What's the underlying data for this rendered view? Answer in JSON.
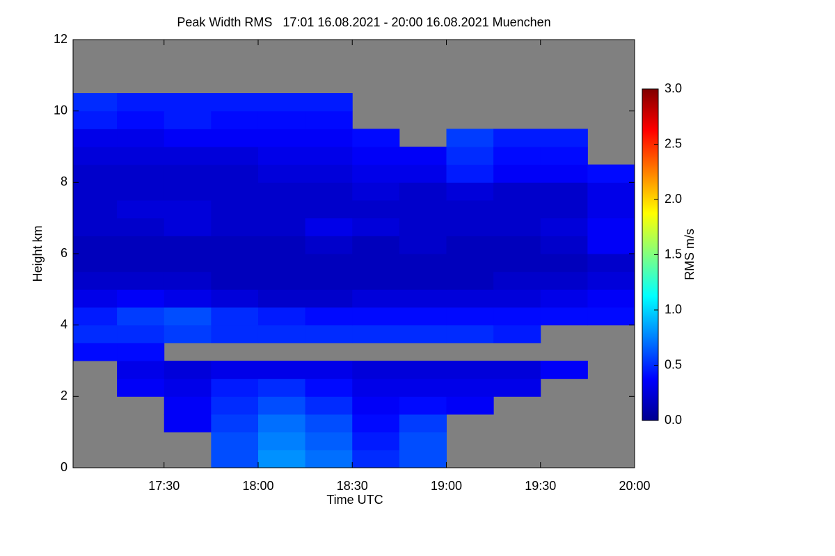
{
  "chart_data": {
    "type": "heatmap",
    "title": "Peak Width RMS   17:01 16.08.2021 - 20:00 16.08.2021 Muenchen",
    "xlabel": "Time UTC",
    "ylabel": "Height km",
    "colorbar_label": "RMS m/s",
    "xlim": [
      17.0167,
      20.0
    ],
    "xticks": [
      {
        "value": 17.5,
        "label": "17:30"
      },
      {
        "value": 18,
        "label": "18:00"
      },
      {
        "value": 18.5,
        "label": "18:30"
      },
      {
        "value": 19,
        "label": "19:00"
      },
      {
        "value": 19.5,
        "label": "19:30"
      },
      {
        "value": 20,
        "label": "20:00"
      }
    ],
    "ylim": [
      0,
      12
    ],
    "yticks": [
      0,
      2,
      4,
      6,
      8,
      10,
      12
    ],
    "zlim": [
      0,
      3
    ],
    "zticks": [
      {
        "value": 0,
        "label": "0.0"
      },
      {
        "value": 0.5,
        "label": "0.5"
      },
      {
        "value": 1,
        "label": "1.0"
      },
      {
        "value": 1.5,
        "label": "1.5"
      },
      {
        "value": 2,
        "label": "2.0"
      },
      {
        "value": 2.5,
        "label": "2.5"
      },
      {
        "value": 3,
        "label": "3.0"
      }
    ],
    "colorscale": [
      "#00008f",
      "#0000ff",
      "#0080ff",
      "#00ffff",
      "#80ff80",
      "#ffff00",
      "#ff8000",
      "#ff0000",
      "#800000"
    ],
    "missing_color": "#808080",
    "x": [
      17.125,
      17.375,
      17.625,
      17.875,
      18.125,
      18.375,
      18.625,
      18.875,
      19.125,
      19.375,
      19.625,
      19.875
    ],
    "y": [
      0.25,
      0.75,
      1.25,
      1.75,
      2.25,
      2.75,
      3.25,
      3.75,
      4.25,
      4.75,
      5.25,
      5.75,
      6.25,
      6.75,
      7.25,
      7.75,
      8.25,
      8.75,
      9.25,
      9.75,
      10.25,
      10.75
    ],
    "z": [
      [
        null,
        null,
        null,
        0.6,
        0.8,
        0.7,
        0.5,
        0.6,
        null,
        null,
        null,
        null
      ],
      [
        null,
        null,
        null,
        0.6,
        0.75,
        0.65,
        0.45,
        0.6,
        null,
        null,
        null,
        null
      ],
      [
        null,
        null,
        0.35,
        0.55,
        0.7,
        0.6,
        0.4,
        0.55,
        null,
        null,
        null,
        null
      ],
      [
        null,
        null,
        0.35,
        0.5,
        0.6,
        0.5,
        0.35,
        0.4,
        0.35,
        null,
        null,
        null
      ],
      [
        null,
        0.35,
        0.3,
        0.45,
        0.5,
        0.4,
        0.3,
        0.3,
        0.3,
        0.3,
        null,
        null
      ],
      [
        null,
        0.3,
        0.25,
        0.3,
        0.3,
        0.3,
        0.25,
        0.25,
        0.25,
        0.25,
        0.35,
        null
      ],
      [
        0.4,
        0.4,
        null,
        null,
        null,
        null,
        null,
        null,
        null,
        null,
        null,
        null
      ],
      [
        0.5,
        0.5,
        0.55,
        0.5,
        0.5,
        0.5,
        0.5,
        0.5,
        0.5,
        0.45,
        null,
        null
      ],
      [
        0.45,
        0.55,
        0.6,
        0.5,
        0.45,
        0.4,
        0.4,
        0.4,
        0.4,
        0.4,
        0.4,
        0.4
      ],
      [
        0.3,
        0.35,
        0.3,
        0.25,
        0.2,
        0.2,
        0.25,
        0.25,
        0.25,
        0.25,
        0.3,
        0.35
      ],
      [
        0.2,
        0.2,
        0.2,
        0.15,
        0.15,
        0.15,
        0.15,
        0.15,
        0.15,
        0.2,
        0.2,
        0.25
      ],
      [
        0.15,
        0.15,
        0.15,
        0.15,
        0.15,
        0.15,
        0.15,
        0.15,
        0.15,
        0.15,
        0.15,
        0.2
      ],
      [
        0.15,
        0.15,
        0.15,
        0.15,
        0.15,
        0.2,
        0.15,
        0.2,
        0.15,
        0.15,
        0.2,
        0.35
      ],
      [
        0.2,
        0.2,
        0.25,
        0.2,
        0.2,
        0.3,
        0.25,
        0.2,
        0.2,
        0.2,
        0.25,
        0.35
      ],
      [
        0.2,
        0.25,
        0.25,
        0.2,
        0.2,
        0.2,
        0.2,
        0.2,
        0.2,
        0.2,
        0.2,
        0.3
      ],
      [
        0.2,
        0.2,
        0.2,
        0.2,
        0.2,
        0.2,
        0.25,
        0.2,
        0.25,
        0.2,
        0.2,
        0.3
      ],
      [
        0.2,
        0.2,
        0.2,
        0.2,
        0.25,
        0.25,
        0.3,
        0.3,
        0.45,
        0.35,
        0.35,
        0.4
      ],
      [
        0.25,
        0.25,
        0.25,
        0.25,
        0.3,
        0.3,
        0.35,
        0.35,
        0.5,
        0.4,
        0.4,
        null
      ],
      [
        0.3,
        0.3,
        0.35,
        0.35,
        0.35,
        0.35,
        0.4,
        null,
        0.55,
        0.45,
        0.45,
        null
      ],
      [
        0.45,
        0.4,
        0.45,
        0.4,
        0.4,
        0.4,
        null,
        null,
        null,
        null,
        null,
        null
      ],
      [
        0.5,
        0.45,
        0.45,
        0.45,
        0.45,
        0.45,
        null,
        null,
        null,
        null,
        null,
        null
      ],
      [
        null,
        null,
        null,
        null,
        null,
        null,
        null,
        null,
        null,
        null,
        null,
        null
      ]
    ]
  }
}
